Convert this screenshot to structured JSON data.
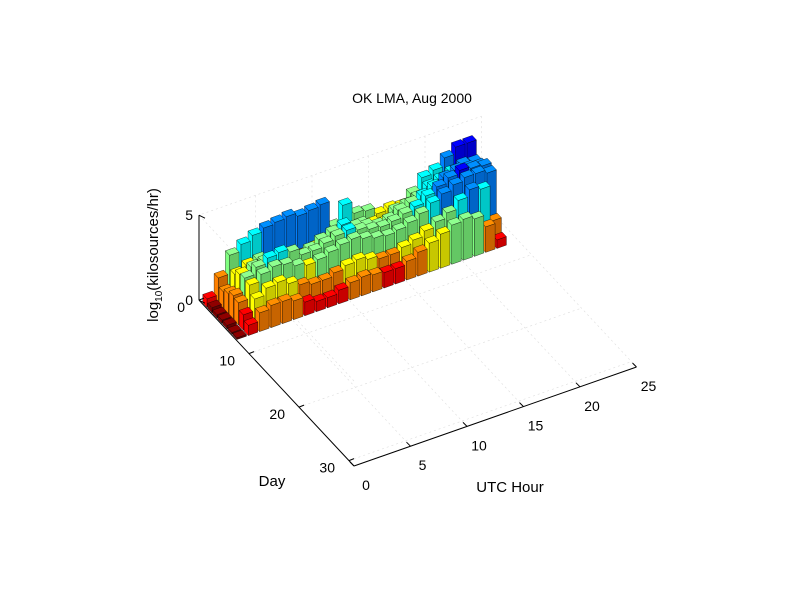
{
  "chart_data": {
    "type": "bar3d",
    "title": "OK LMA, Aug 2000",
    "xlabel": "UTC Hour",
    "ylabel": "Day",
    "zlabel_main": "log",
    "zlabel_sub": "10",
    "zlabel_rest": "(kilosources/hr)",
    "x_ticks": [
      "0",
      "5",
      "10",
      "15",
      "20",
      "25"
    ],
    "y_ticks": [
      "0",
      "10",
      "20",
      "30"
    ],
    "z_ticks": [
      "0",
      "5"
    ],
    "xlim": [
      0,
      25
    ],
    "ylim": [
      0,
      31
    ],
    "zlim": [
      0,
      5
    ],
    "grid": true,
    "colormap": "jet",
    "colormap_colors": [
      "#00008f",
      "#0000ff",
      "#0080ff",
      "#00ffff",
      "#80ff80",
      "#ffff00",
      "#ff8000",
      "#ff0000",
      "#800000"
    ],
    "days": [
      1,
      2,
      3,
      4,
      5,
      6,
      7
    ],
    "hours": [
      0,
      1,
      2,
      3,
      4,
      5,
      6,
      7,
      8,
      9,
      10,
      11,
      12,
      13,
      14,
      15,
      16,
      17,
      18,
      19,
      20,
      21,
      22,
      23
    ],
    "series": [
      {
        "day": 1,
        "values": [
          0.5,
          1.5,
          2.6,
          3.0,
          3.3,
          3.5,
          3.6,
          3.7,
          3.5,
          3.6,
          3.7,
          2.2,
          3.2,
          2.5,
          2.4,
          2.0,
          2.1,
          2.0,
          2.5,
          3.2,
          3.4,
          3.9,
          4.3,
          4.3
        ]
      },
      {
        "day": 2,
        "values": [
          0.3,
          1.0,
          1.8,
          2.1,
          2.2,
          1.9,
          1.6,
          1.4,
          1.6,
          1.8,
          2.0,
          2.2,
          2.0,
          2.2,
          2.0,
          1.8,
          2.3,
          2.4,
          2.6,
          3.0,
          3.2,
          3.4,
          3.6,
          3.5
        ]
      },
      {
        "day": 3,
        "values": [
          0.2,
          1.2,
          2.1,
          2.3,
          2.4,
          2.3,
          2.2,
          2.0,
          2.2,
          2.5,
          2.7,
          2.9,
          2.6,
          2.4,
          2.2,
          2.3,
          2.6,
          2.8,
          3.0,
          3.3,
          3.6,
          3.8,
          3.7,
          3.6
        ]
      },
      {
        "day": 4,
        "values": [
          0.2,
          1.4,
          2.2,
          2.6,
          2.9,
          3.0,
          2.8,
          2.4,
          2.4,
          2.6,
          2.8,
          2.9,
          2.7,
          2.5,
          2.4,
          2.5,
          2.7,
          2.9,
          3.3,
          3.6,
          3.9,
          4.1,
          4.0,
          3.9
        ]
      },
      {
        "day": 5,
        "values": [
          0.2,
          1.3,
          2.1,
          2.5,
          2.7,
          2.6,
          2.3,
          2.1,
          2.2,
          2.4,
          2.6,
          2.7,
          2.5,
          2.3,
          2.2,
          2.3,
          2.5,
          2.8,
          3.2,
          3.5,
          3.8,
          4.0,
          4.0,
          3.8
        ]
      },
      {
        "day": 6,
        "values": [
          0.1,
          0.9,
          1.6,
          2.0,
          2.1,
          1.8,
          1.5,
          1.3,
          1.3,
          1.5,
          1.7,
          1.8,
          1.6,
          1.4,
          1.4,
          1.6,
          1.8,
          2.1,
          2.4,
          2.7,
          3.2,
          3.6,
          3.4,
          1.3
        ]
      },
      {
        "day": 7,
        "values": [
          0.1,
          0.6,
          1.1,
          1.3,
          1.3,
          1.1,
          0.8,
          0.6,
          0.6,
          0.8,
          1.0,
          1.1,
          1.0,
          0.9,
          0.9,
          1.1,
          1.4,
          1.7,
          2.0,
          2.3,
          2.4,
          2.2,
          1.5,
          0.5
        ]
      }
    ]
  }
}
